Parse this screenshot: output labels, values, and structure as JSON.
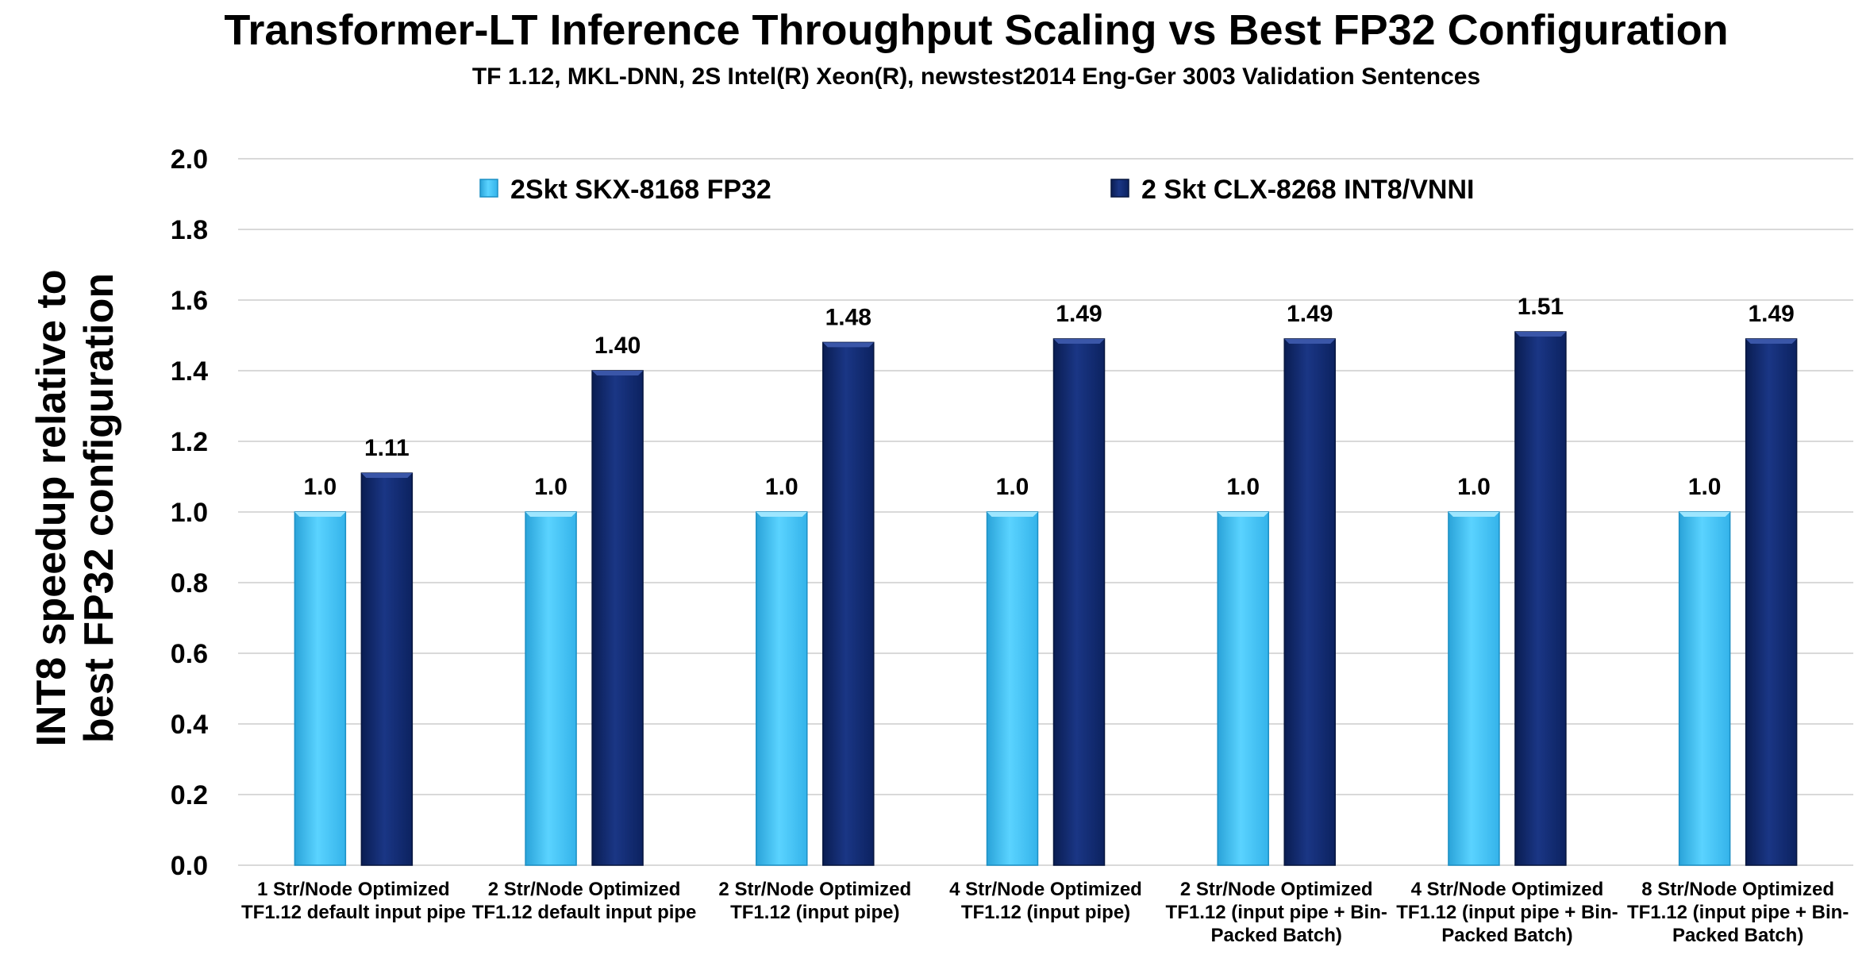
{
  "chart_data": {
    "type": "bar",
    "title": "Transformer-LT Inference Throughput Scaling vs Best FP32 Configuration",
    "subtitle": "TF 1.12, MKL-DNN, 2S Intel(R) Xeon(R), newstest2014 Eng-Ger 3003 Validation Sentences",
    "ylabel_lines": [
      "INT8 speedup relative to",
      "best FP32 configuration"
    ],
    "xlabel": "",
    "ylim": [
      0,
      2.0
    ],
    "yticks": [
      "0.0",
      "0.2",
      "0.4",
      "0.6",
      "0.8",
      "1.0",
      "1.2",
      "1.4",
      "1.6",
      "1.8",
      "2.0"
    ],
    "grid": true,
    "legend_position": "top",
    "categories": [
      [
        "1 Str/Node Optimized",
        "TF1.12 default input pipe"
      ],
      [
        "2 Str/Node Optimized",
        "TF1.12 default input pipe"
      ],
      [
        "2 Str/Node Optimized",
        "TF1.12 (input pipe)"
      ],
      [
        "4 Str/Node Optimized",
        "TF1.12 (input pipe)"
      ],
      [
        "2 Str/Node  Optimized",
        "TF1.12 (input pipe + Bin-",
        "Packed Batch)"
      ],
      [
        "4 Str/Node  Optimized",
        "TF1.12 (input pipe + Bin-",
        "Packed Batch)"
      ],
      [
        "8 Str/Node  Optimized",
        "TF1.12 (input pipe + Bin-",
        "Packed Batch)"
      ]
    ],
    "series": [
      {
        "name": "2Skt SKX-8168 FP32",
        "color": "#4dc9ff",
        "values": [
          1.0,
          1.0,
          1.0,
          1.0,
          1.0,
          1.0,
          1.0
        ],
        "labels": [
          "1.0",
          "1.0",
          "1.0",
          "1.0",
          "1.0",
          "1.0",
          "1.0"
        ]
      },
      {
        "name": "2 Skt CLX-8268 INT8/VNNI",
        "color": "#10296e",
        "values": [
          1.11,
          1.4,
          1.48,
          1.49,
          1.49,
          1.51,
          1.49
        ],
        "labels": [
          "1.11",
          "1.40",
          "1.48",
          "1.49",
          "1.49",
          "1.51",
          "1.49"
        ]
      }
    ]
  }
}
